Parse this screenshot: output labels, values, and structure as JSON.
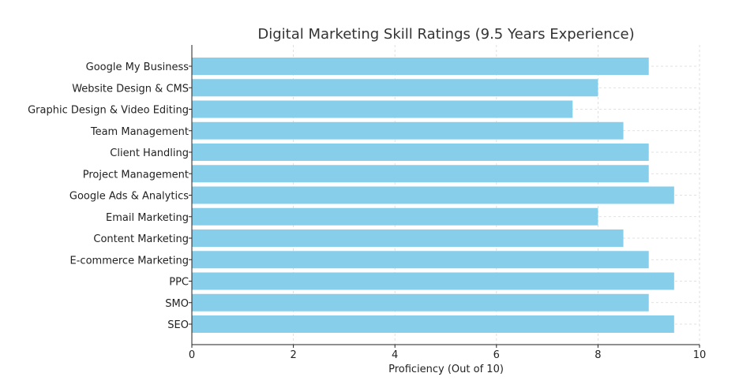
{
  "chart_data": {
    "type": "bar",
    "orientation": "horizontal",
    "title": "Digital Marketing Skill Ratings (9.5 Years Experience)",
    "xlabel": "Proficiency (Out of 10)",
    "ylabel": "",
    "xlim": [
      0,
      10
    ],
    "xticks": [
      "0",
      "2",
      "4",
      "6",
      "8",
      "10"
    ],
    "grid": true,
    "bar_color": "#87ceeb",
    "categories": [
      "Google My Business",
      "Website Design & CMS",
      "Graphic Design & Video Editing",
      "Team Management",
      "Client Handling",
      "Project Management",
      "Google Ads & Analytics",
      "Email Marketing",
      "Content Marketing",
      "E-commerce Marketing",
      "PPC",
      "SMO",
      "SEO"
    ],
    "values": [
      9,
      8,
      7.5,
      8.5,
      9,
      9,
      9.5,
      8,
      8.5,
      9,
      9.5,
      9,
      9.5
    ]
  }
}
